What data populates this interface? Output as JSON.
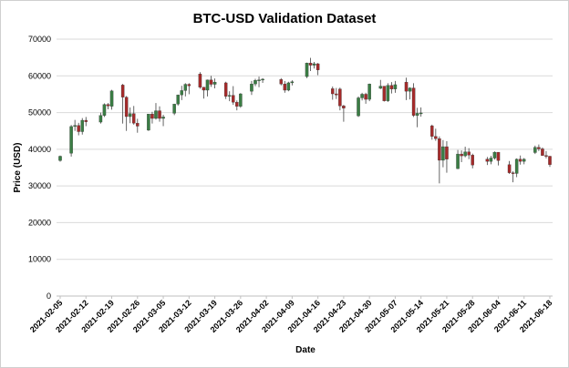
{
  "chart_data": {
    "type": "candlestick",
    "title": "BTC-USD Validation Dataset",
    "xlabel": "Date",
    "ylabel": "Price (USD)",
    "ylim": [
      0,
      70000
    ],
    "yticks": [
      0,
      10000,
      20000,
      30000,
      40000,
      50000,
      60000,
      70000
    ],
    "xticks": [
      "2021-02-05",
      "2021-02-12",
      "2021-02-19",
      "2021-02-26",
      "2021-03-05",
      "2021-03-12",
      "2021-03-19",
      "2021-03-26",
      "2021-04-02",
      "2021-04-09",
      "2021-04-16",
      "2021-04-23",
      "2021-04-30",
      "2021-05-07",
      "2021-05-14",
      "2021-05-21",
      "2021-05-28",
      "2021-06-04",
      "2021-06-11",
      "2021-06-18"
    ],
    "grid": "horizontal",
    "legend": "none",
    "colors": {
      "up": "#3a7d44",
      "down": "#a52a2a",
      "wick": "#404040",
      "grid": "#d9d9d9",
      "axis": "#bfbfbf"
    },
    "candles": [
      {
        "date": "2021-02-05",
        "open": 36900,
        "high": 38300,
        "low": 36600,
        "close": 38100
      },
      {
        "date": "2021-02-08",
        "open": 38900,
        "high": 46600,
        "low": 38000,
        "close": 46200
      },
      {
        "date": "2021-02-09",
        "open": 46200,
        "high": 48000,
        "low": 45000,
        "close": 46500
      },
      {
        "date": "2021-02-10",
        "open": 46500,
        "high": 47200,
        "low": 43800,
        "close": 44800
      },
      {
        "date": "2021-02-11",
        "open": 44800,
        "high": 48500,
        "low": 44000,
        "close": 47900
      },
      {
        "date": "2021-02-12",
        "open": 47900,
        "high": 48800,
        "low": 46300,
        "close": 47500
      },
      {
        "date": "2021-02-16",
        "open": 47400,
        "high": 50000,
        "low": 47000,
        "close": 49200
      },
      {
        "date": "2021-02-17",
        "open": 49200,
        "high": 52500,
        "low": 48800,
        "close": 52200
      },
      {
        "date": "2021-02-18",
        "open": 52200,
        "high": 52600,
        "low": 50900,
        "close": 51800
      },
      {
        "date": "2021-02-19",
        "open": 51700,
        "high": 56200,
        "low": 50800,
        "close": 55900
      },
      {
        "date": "2021-02-22",
        "open": 57500,
        "high": 57800,
        "low": 47000,
        "close": 54200
      },
      {
        "date": "2021-02-23",
        "open": 54200,
        "high": 54500,
        "low": 45000,
        "close": 48900
      },
      {
        "date": "2021-02-24",
        "open": 48900,
        "high": 51400,
        "low": 47100,
        "close": 49700
      },
      {
        "date": "2021-02-25",
        "open": 49700,
        "high": 51800,
        "low": 46700,
        "close": 47100
      },
      {
        "date": "2021-02-26",
        "open": 47100,
        "high": 48300,
        "low": 44500,
        "close": 46300
      },
      {
        "date": "2021-03-01",
        "open": 45200,
        "high": 49600,
        "low": 45000,
        "close": 49600
      },
      {
        "date": "2021-03-02",
        "open": 49600,
        "high": 50200,
        "low": 47000,
        "close": 48400
      },
      {
        "date": "2021-03-03",
        "open": 48400,
        "high": 52600,
        "low": 48100,
        "close": 50500
      },
      {
        "date": "2021-03-04",
        "open": 50500,
        "high": 51700,
        "low": 47500,
        "close": 48400
      },
      {
        "date": "2021-03-05",
        "open": 48400,
        "high": 49400,
        "low": 46300,
        "close": 48800
      },
      {
        "date": "2021-03-08",
        "open": 49800,
        "high": 52400,
        "low": 49300,
        "close": 52300
      },
      {
        "date": "2021-03-09",
        "open": 52300,
        "high": 54900,
        "low": 51900,
        "close": 54800
      },
      {
        "date": "2021-03-10",
        "open": 54800,
        "high": 57300,
        "low": 53400,
        "close": 56000
      },
      {
        "date": "2021-03-11",
        "open": 56000,
        "high": 58000,
        "low": 54400,
        "close": 57700
      },
      {
        "date": "2021-03-12",
        "open": 57700,
        "high": 58000,
        "low": 55000,
        "close": 57300
      },
      {
        "date": "2021-03-15",
        "open": 60500,
        "high": 61000,
        "low": 56500,
        "close": 56900
      },
      {
        "date": "2021-03-16",
        "open": 56900,
        "high": 57000,
        "low": 53800,
        "close": 56100
      },
      {
        "date": "2021-03-17",
        "open": 56100,
        "high": 59000,
        "low": 54400,
        "close": 58900
      },
      {
        "date": "2021-03-18",
        "open": 58900,
        "high": 60000,
        "low": 57000,
        "close": 57700
      },
      {
        "date": "2021-03-19",
        "open": 57700,
        "high": 59300,
        "low": 56600,
        "close": 58300
      },
      {
        "date": "2021-03-22",
        "open": 58100,
        "high": 58400,
        "low": 53700,
        "close": 54400
      },
      {
        "date": "2021-03-23",
        "open": 54400,
        "high": 55800,
        "low": 53100,
        "close": 54700
      },
      {
        "date": "2021-03-24",
        "open": 54700,
        "high": 57200,
        "low": 52100,
        "close": 52800
      },
      {
        "date": "2021-03-25",
        "open": 52800,
        "high": 53300,
        "low": 50600,
        "close": 51700
      },
      {
        "date": "2021-03-26",
        "open": 51700,
        "high": 55300,
        "low": 51300,
        "close": 55100
      },
      {
        "date": "2021-03-29",
        "open": 55800,
        "high": 58600,
        "low": 54800,
        "close": 57800
      },
      {
        "date": "2021-03-30",
        "open": 57800,
        "high": 59200,
        "low": 57200,
        "close": 58800
      },
      {
        "date": "2021-03-31",
        "open": 58800,
        "high": 59800,
        "low": 56900,
        "close": 58900
      },
      {
        "date": "2021-04-01",
        "open": 58900,
        "high": 59400,
        "low": 58100,
        "close": 59100
      },
      {
        "date": "2021-04-06",
        "open": 59000,
        "high": 59400,
        "low": 57400,
        "close": 57800
      },
      {
        "date": "2021-04-07",
        "open": 57800,
        "high": 58600,
        "low": 55400,
        "close": 56100
      },
      {
        "date": "2021-04-08",
        "open": 56100,
        "high": 58400,
        "low": 55800,
        "close": 58100
      },
      {
        "date": "2021-04-09",
        "open": 58100,
        "high": 58800,
        "low": 57400,
        "close": 58400
      },
      {
        "date": "2021-04-13",
        "open": 59800,
        "high": 63600,
        "low": 59400,
        "close": 63500
      },
      {
        "date": "2021-04-14",
        "open": 63500,
        "high": 64900,
        "low": 61300,
        "close": 62900
      },
      {
        "date": "2021-04-15",
        "open": 62900,
        "high": 63800,
        "low": 62000,
        "close": 63300
      },
      {
        "date": "2021-04-16",
        "open": 63300,
        "high": 63500,
        "low": 60200,
        "close": 61600
      },
      {
        "date": "2021-04-20",
        "open": 56500,
        "high": 57100,
        "low": 53500,
        "close": 55100
      },
      {
        "date": "2021-04-21",
        "open": 55100,
        "high": 56700,
        "low": 53700,
        "close": 54800
      },
      {
        "date": "2021-04-22",
        "open": 56400,
        "high": 56800,
        "low": 50600,
        "close": 51800
      },
      {
        "date": "2021-04-23",
        "open": 51800,
        "high": 52100,
        "low": 47500,
        "close": 51200
      },
      {
        "date": "2021-04-27",
        "open": 49100,
        "high": 54400,
        "low": 48800,
        "close": 54000
      },
      {
        "date": "2021-04-28",
        "open": 54000,
        "high": 55400,
        "low": 53300,
        "close": 55000
      },
      {
        "date": "2021-04-29",
        "open": 55000,
        "high": 55400,
        "low": 52400,
        "close": 53600
      },
      {
        "date": "2021-04-30",
        "open": 53600,
        "high": 57900,
        "low": 53100,
        "close": 57800
      },
      {
        "date": "2021-05-03",
        "open": 56600,
        "high": 58900,
        "low": 56400,
        "close": 57200
      },
      {
        "date": "2021-05-04",
        "open": 57200,
        "high": 57200,
        "low": 53000,
        "close": 53200
      },
      {
        "date": "2021-05-05",
        "open": 53200,
        "high": 58000,
        "low": 52900,
        "close": 57400
      },
      {
        "date": "2021-05-06",
        "open": 57400,
        "high": 58300,
        "low": 55200,
        "close": 56400
      },
      {
        "date": "2021-05-07",
        "open": 56400,
        "high": 58600,
        "low": 55400,
        "close": 57600
      },
      {
        "date": "2021-05-10",
        "open": 58300,
        "high": 59500,
        "low": 53400,
        "close": 55800
      },
      {
        "date": "2021-05-11",
        "open": 55800,
        "high": 56900,
        "low": 53600,
        "close": 56700
      },
      {
        "date": "2021-05-12",
        "open": 56700,
        "high": 58000,
        "low": 48800,
        "close": 49200
      },
      {
        "date": "2021-05-13",
        "open": 49200,
        "high": 51300,
        "low": 46000,
        "close": 49800
      },
      {
        "date": "2021-05-14",
        "open": 49800,
        "high": 51400,
        "low": 48900,
        "close": 49900
      },
      {
        "date": "2021-05-17",
        "open": 46400,
        "high": 46700,
        "low": 42600,
        "close": 43500
      },
      {
        "date": "2021-05-18",
        "open": 43500,
        "high": 45600,
        "low": 42300,
        "close": 42900
      },
      {
        "date": "2021-05-19",
        "open": 42900,
        "high": 43500,
        "low": 30700,
        "close": 37000
      },
      {
        "date": "2021-05-20",
        "open": 37000,
        "high": 42500,
        "low": 35100,
        "close": 40700
      },
      {
        "date": "2021-05-21",
        "open": 40700,
        "high": 42200,
        "low": 33600,
        "close": 37300
      },
      {
        "date": "2021-05-24",
        "open": 34700,
        "high": 39800,
        "low": 34600,
        "close": 38700
      },
      {
        "date": "2021-05-25",
        "open": 38700,
        "high": 39700,
        "low": 36500,
        "close": 38200
      },
      {
        "date": "2021-05-26",
        "open": 38200,
        "high": 40700,
        "low": 37800,
        "close": 39300
      },
      {
        "date": "2021-05-27",
        "open": 39300,
        "high": 40300,
        "low": 37300,
        "close": 38400
      },
      {
        "date": "2021-05-28",
        "open": 38400,
        "high": 38800,
        "low": 34800,
        "close": 35700
      },
      {
        "date": "2021-06-01",
        "open": 37300,
        "high": 37900,
        "low": 35700,
        "close": 36700
      },
      {
        "date": "2021-06-02",
        "open": 36700,
        "high": 38200,
        "low": 35900,
        "close": 37600
      },
      {
        "date": "2021-06-03",
        "open": 37600,
        "high": 39400,
        "low": 37200,
        "close": 39200
      },
      {
        "date": "2021-06-04",
        "open": 39200,
        "high": 39200,
        "low": 35600,
        "close": 36900
      },
      {
        "date": "2021-06-07",
        "open": 35800,
        "high": 36800,
        "low": 33300,
        "close": 33600
      },
      {
        "date": "2021-06-08",
        "open": 33600,
        "high": 34000,
        "low": 31000,
        "close": 33400
      },
      {
        "date": "2021-06-09",
        "open": 33400,
        "high": 37500,
        "low": 32400,
        "close": 37300
      },
      {
        "date": "2021-06-10",
        "open": 37300,
        "high": 38300,
        "low": 35800,
        "close": 36700
      },
      {
        "date": "2021-06-11",
        "open": 36700,
        "high": 37600,
        "low": 35900,
        "close": 37300
      },
      {
        "date": "2021-06-14",
        "open": 39100,
        "high": 41000,
        "low": 38700,
        "close": 40500
      },
      {
        "date": "2021-06-15",
        "open": 40500,
        "high": 41300,
        "low": 39500,
        "close": 40100
      },
      {
        "date": "2021-06-16",
        "open": 40100,
        "high": 40500,
        "low": 38200,
        "close": 38300
      },
      {
        "date": "2021-06-17",
        "open": 38300,
        "high": 39500,
        "low": 37500,
        "close": 38100
      },
      {
        "date": "2021-06-18",
        "open": 38100,
        "high": 38200,
        "low": 35200,
        "close": 35800
      }
    ]
  }
}
